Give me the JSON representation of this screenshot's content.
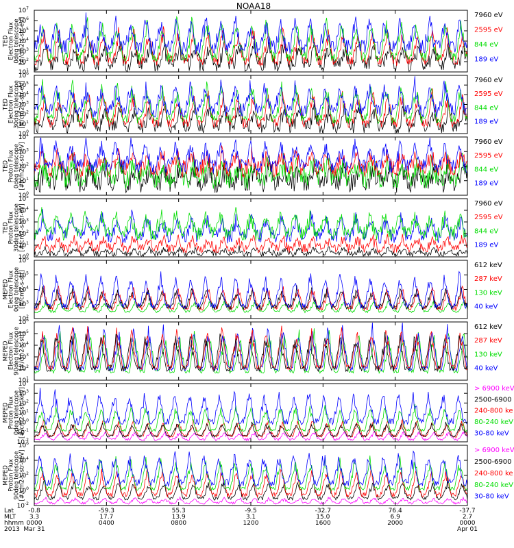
{
  "title": "NOAA18",
  "colors": {
    "black": "#000000",
    "red": "#ff0000",
    "green": "#00dd00",
    "blue": "#0000ff",
    "magenta": "#ff00ff"
  },
  "panels": [
    {
      "ylabel": [
        "TED",
        "Electron Flux",
        "0deg telescope",
        "[#/cm2-s-str-eV]"
      ],
      "yticks": [
        {
          "b": "10",
          "e": "1"
        },
        {
          "b": "10",
          "e": "2"
        },
        {
          "b": "10",
          "e": "3"
        },
        {
          "b": "10",
          "e": "4"
        },
        {
          "b": "10",
          "e": "5"
        },
        {
          "b": "10",
          "e": "6"
        },
        {
          "b": "10",
          "e": "7"
        }
      ],
      "legend": [
        {
          "text": "7960 eV",
          "color": "#000000"
        },
        {
          "text": "2595 eV",
          "color": "#ff0000"
        },
        {
          "text": "844 eV",
          "color": "#00dd00"
        },
        {
          "text": "189 eV",
          "color": "#0000ff"
        }
      ],
      "style": "ted-e"
    },
    {
      "ylabel": [
        "TED",
        "Electron Flux",
        "30deg telescope",
        "[#/cm2-s-str-eV]"
      ],
      "yticks": [
        {
          "b": "10",
          "e": "0"
        },
        {
          "b": "10",
          "e": "1"
        },
        {
          "b": "10",
          "e": "2"
        },
        {
          "b": "10",
          "e": "3"
        },
        {
          "b": "10",
          "e": "4"
        },
        {
          "b": "10",
          "e": "5"
        },
        {
          "b": "10",
          "e": "6"
        }
      ],
      "legend": [
        {
          "text": "7960 eV",
          "color": "#000000"
        },
        {
          "text": "2595 eV",
          "color": "#ff0000"
        },
        {
          "text": "844 eV",
          "color": "#00dd00"
        },
        {
          "text": "189 eV",
          "color": "#0000ff"
        }
      ],
      "style": "ted-e"
    },
    {
      "ylabel": [
        "TED",
        "Proton Flux",
        "0deg telescope",
        "[#/cm2-s-str-eV]"
      ],
      "yticks": [
        {
          "b": "10",
          "e": "0"
        },
        {
          "b": "10",
          "e": "1"
        },
        {
          "b": "10",
          "e": "2"
        },
        {
          "b": "10",
          "e": "3"
        },
        {
          "b": "10",
          "e": "4"
        }
      ],
      "legend": [
        {
          "text": "7960 eV",
          "color": "#000000"
        },
        {
          "text": "2595 eV",
          "color": "#ff0000"
        },
        {
          "text": "844 eV",
          "color": "#00dd00"
        },
        {
          "text": "189 eV",
          "color": "#0000ff"
        }
      ],
      "style": "ted-p"
    },
    {
      "ylabel": [
        "TED",
        "Proton Flux",
        "30deg telescope",
        "[#/cm2-s-str-eV]"
      ],
      "yticks": [
        {
          "b": "10",
          "e": "0"
        },
        {
          "b": "10",
          "e": "1"
        },
        {
          "b": "10",
          "e": "2"
        },
        {
          "b": "10",
          "e": "3"
        },
        {
          "b": "10",
          "e": "4"
        },
        {
          "b": "10",
          "e": "5"
        }
      ],
      "legend": [
        {
          "text": "7960 eV",
          "color": "#000000"
        },
        {
          "text": "2595 eV",
          "color": "#ff0000"
        },
        {
          "text": "844 eV",
          "color": "#00dd00"
        },
        {
          "text": "189 eV",
          "color": "#0000ff"
        }
      ],
      "style": "ted-p30"
    },
    {
      "ylabel": [
        "MEPED",
        "Electron Flux",
        "0deg telescope",
        "[#/cm2-s-str]"
      ],
      "yticks": [
        {
          "b": "10",
          "e": "2"
        },
        {
          "b": "10",
          "e": "3"
        },
        {
          "b": "10",
          "e": "4"
        },
        {
          "b": "10",
          "e": "5"
        },
        {
          "b": "10",
          "e": "6"
        }
      ],
      "legend": [
        {
          "text": "612 keV",
          "color": "#000000"
        },
        {
          "text": "287 keV",
          "color": "#ff0000"
        },
        {
          "text": "130 keV",
          "color": "#00dd00"
        },
        {
          "text": "40 keV",
          "color": "#0000ff"
        }
      ],
      "style": "meped-e"
    },
    {
      "ylabel": [
        "MEPED",
        "Electron Flux",
        "90deg telescope",
        "[#/cm2-s-str]"
      ],
      "yticks": [
        {
          "b": "10",
          "e": "1"
        },
        {
          "b": "10",
          "e": "2"
        },
        {
          "b": "10",
          "e": "3"
        },
        {
          "b": "10",
          "e": "4"
        },
        {
          "b": "10",
          "e": "5"
        },
        {
          "b": "10",
          "e": "6"
        }
      ],
      "legend": [
        {
          "text": "612 keV",
          "color": "#000000"
        },
        {
          "text": "287 keV",
          "color": "#ff0000"
        },
        {
          "text": "130 keV",
          "color": "#00dd00"
        },
        {
          "text": "40 keV",
          "color": "#0000ff"
        }
      ],
      "style": "meped-e90"
    },
    {
      "ylabel": [
        "MEPED",
        "Proton Flux",
        "0deg telescope",
        "[#/cm2-s-str-keV]"
      ],
      "yticks": [
        {
          "b": "10",
          "e": "-2"
        },
        {
          "b": "10",
          "e": "-1"
        },
        {
          "b": "10",
          "e": "0"
        },
        {
          "b": "10",
          "e": "1"
        },
        {
          "b": "10",
          "e": "2"
        },
        {
          "b": "10",
          "e": "3"
        },
        {
          "b": "10",
          "e": "4"
        }
      ],
      "legend": [
        {
          "text": "> 6900 keV",
          "color": "#ff00ff"
        },
        {
          "text": "2500-6900",
          "color": "#000000"
        },
        {
          "text": "240-800 ke",
          "color": "#ff0000"
        },
        {
          "text": "80-240 keV",
          "color": "#00dd00"
        },
        {
          "text": "30-80 keV",
          "color": "#0000ff"
        }
      ],
      "style": "meped-p"
    },
    {
      "ylabel": [
        "MEPED",
        "Proton Flux",
        "90deg telescope",
        "[#/cm2-s-str-keV]"
      ],
      "yticks": [
        {
          "b": "10",
          "e": "-2"
        },
        {
          "b": "10",
          "e": "0"
        },
        {
          "b": "10",
          "e": "2"
        },
        {
          "b": "10",
          "e": "4"
        },
        {
          "b": "10",
          "e": "6"
        }
      ],
      "legend": [
        {
          "text": "> 6900 keV",
          "color": "#ff00ff"
        },
        {
          "text": "2500-6900",
          "color": "#000000"
        },
        {
          "text": "240-800 ke",
          "color": "#ff0000"
        },
        {
          "text": "80-240 keV",
          "color": "#00dd00"
        },
        {
          "text": "30-80 keV",
          "color": "#0000ff"
        }
      ],
      "style": "meped-p90"
    }
  ],
  "xaxis": {
    "row_labels": [
      "Lat",
      "MLT",
      "hhmm",
      "2013"
    ],
    "ticks": [
      {
        "lat": "-0.8",
        "mlt": "3.3",
        "hhmm": "0000",
        "date": "Mar 31"
      },
      {
        "lat": "-59.3",
        "mlt": "17.7",
        "hhmm": "0400",
        "date": ""
      },
      {
        "lat": "55.3",
        "mlt": "13.9",
        "hhmm": "0800",
        "date": ""
      },
      {
        "lat": "-9.5",
        "mlt": "3.1",
        "hhmm": "1200",
        "date": ""
      },
      {
        "lat": "-32.7",
        "mlt": "15.0",
        "hhmm": "1600",
        "date": ""
      },
      {
        "lat": "76.4",
        "mlt": "6.9",
        "hhmm": "2000",
        "date": ""
      },
      {
        "lat": "-37.7",
        "mlt": "2.7",
        "hhmm": "0000",
        "date": "Apr 01"
      }
    ]
  },
  "chart_data": {
    "type": "line",
    "title": "NOAA18",
    "x_range": [
      "2013-03-31 00:00",
      "2013-04-01 00:00"
    ],
    "x_tick_labels": [
      "0000",
      "0400",
      "0800",
      "1200",
      "1600",
      "2000",
      "0000"
    ],
    "y_scale": "log",
    "panels": [
      {
        "ylabel": "TED Electron Flux 0deg telescope [#/cm2-s-str-eV]",
        "ylim": [
          10.0,
          10000000.0
        ],
        "series": [
          {
            "name": "7960 eV"
          },
          {
            "name": "2595 eV"
          },
          {
            "name": "844 eV"
          },
          {
            "name": "189 eV"
          }
        ]
      },
      {
        "ylabel": "TED Electron Flux 30deg telescope [#/cm2-s-str-eV]",
        "ylim": [
          1.0,
          1000000.0
        ],
        "series": [
          {
            "name": "7960 eV"
          },
          {
            "name": "2595 eV"
          },
          {
            "name": "844 eV"
          },
          {
            "name": "189 eV"
          }
        ]
      },
      {
        "ylabel": "TED Proton Flux 0deg telescope [#/cm2-s-str-eV]",
        "ylim": [
          1.0,
          10000.0
        ],
        "series": [
          {
            "name": "7960 eV"
          },
          {
            "name": "2595 eV"
          },
          {
            "name": "844 eV"
          },
          {
            "name": "189 eV"
          }
        ]
      },
      {
        "ylabel": "TED Proton Flux 30deg telescope [#/cm2-s-str-eV]",
        "ylim": [
          1.0,
          100000.0
        ],
        "series": [
          {
            "name": "7960 eV"
          },
          {
            "name": "2595 eV"
          },
          {
            "name": "844 eV"
          },
          {
            "name": "189 eV"
          }
        ]
      },
      {
        "ylabel": "MEPED Electron Flux 0deg telescope [#/cm2-s-str]",
        "ylim": [
          100.0,
          1000000.0
        ],
        "series": [
          {
            "name": "612 keV"
          },
          {
            "name": "287 keV"
          },
          {
            "name": "130 keV"
          },
          {
            "name": "40 keV"
          }
        ]
      },
      {
        "ylabel": "MEPED Electron Flux 90deg telescope [#/cm2-s-str]",
        "ylim": [
          10.0,
          1000000.0
        ],
        "series": [
          {
            "name": "612 keV"
          },
          {
            "name": "287 keV"
          },
          {
            "name": "130 keV"
          },
          {
            "name": "40 keV"
          }
        ]
      },
      {
        "ylabel": "MEPED Proton Flux 0deg telescope [#/cm2-s-str-keV]",
        "ylim": [
          0.01,
          10000.0
        ],
        "series": [
          {
            "name": "> 6900 keV"
          },
          {
            "name": "2500-6900"
          },
          {
            "name": "240-800 ke"
          },
          {
            "name": "80-240 keV"
          },
          {
            "name": "30-80 keV"
          }
        ]
      },
      {
        "ylabel": "MEPED Proton Flux 90deg telescope [#/cm2-s-str-keV]",
        "ylim": [
          0.01,
          1000000.0
        ],
        "series": [
          {
            "name": "> 6900 keV"
          },
          {
            "name": "2500-6900"
          },
          {
            "name": "240-800 ke"
          },
          {
            "name": "80-240 keV"
          },
          {
            "name": "30-80 keV"
          }
        ]
      }
    ]
  }
}
